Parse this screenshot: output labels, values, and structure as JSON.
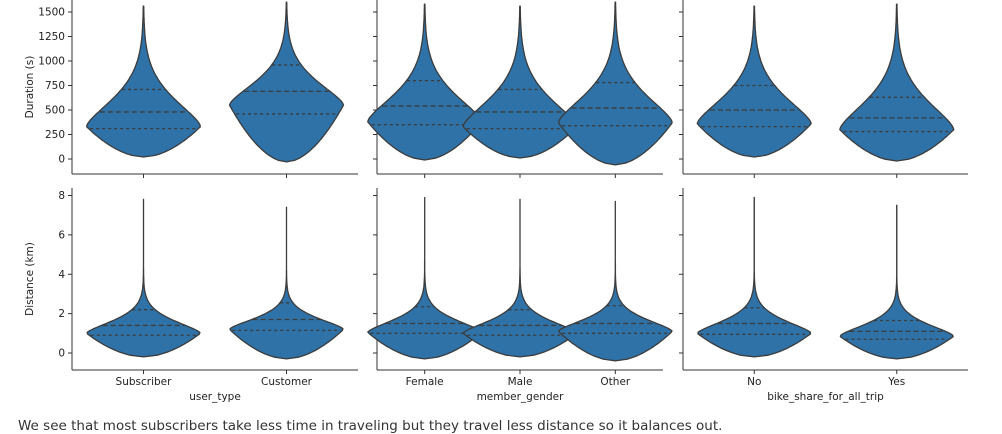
{
  "colors": {
    "violin_fill": "#2e72a8",
    "violin_edge": "#3c3c3c",
    "axis": "#333333",
    "text": "#222222"
  },
  "chart_data": {
    "type": "violin",
    "grid": false,
    "note": "We see that most subscribers take less time in traveling but they travel less distance so it balances out.",
    "rows": [
      {
        "ylabel": "Duration (s)",
        "yticks": [
          0,
          250,
          500,
          750,
          1000,
          1250,
          1500
        ],
        "ylim": [
          -100,
          1570
        ]
      },
      {
        "ylabel": "Distance (km)",
        "yticks": [
          0,
          2,
          4,
          6,
          8
        ],
        "ylim": [
          -0.8,
          8.2
        ]
      }
    ],
    "columns": [
      {
        "xlabel": "user_type",
        "categories": [
          "Subscriber",
          "Customer"
        ]
      },
      {
        "xlabel": "member_gender",
        "categories": [
          "Female",
          "Male",
          "Other"
        ]
      },
      {
        "xlabel": "bike_share_for_all_trip",
        "categories": [
          "No",
          "Yes"
        ]
      }
    ],
    "violins": [
      [
        [
          {
            "min": 20,
            "max": 1560,
            "q1": 310,
            "median": 480,
            "q3": 710,
            "mode": 330
          },
          {
            "min": -30,
            "max": 1600,
            "q1": 460,
            "median": 690,
            "q3": 960,
            "mode": 550
          }
        ],
        [
          {
            "min": -10,
            "max": 1580,
            "q1": 350,
            "median": 540,
            "q3": 800,
            "mode": 380
          },
          {
            "min": 10,
            "max": 1560,
            "q1": 310,
            "median": 480,
            "q3": 710,
            "mode": 330
          },
          {
            "min": -60,
            "max": 1600,
            "q1": 340,
            "median": 520,
            "q3": 780,
            "mode": 370
          }
        ],
        [
          {
            "min": 20,
            "max": 1560,
            "q1": 330,
            "median": 500,
            "q3": 750,
            "mode": 360
          },
          {
            "min": -20,
            "max": 1580,
            "q1": 280,
            "median": 420,
            "q3": 630,
            "mode": 300
          }
        ]
      ],
      [
        [
          {
            "min": -0.2,
            "max": 7.8,
            "q1": 0.9,
            "median": 1.4,
            "q3": 2.2,
            "mode": 1.0
          },
          {
            "min": -0.3,
            "max": 7.4,
            "q1": 1.15,
            "median": 1.7,
            "q3": 2.55,
            "mode": 1.2
          }
        ],
        [
          {
            "min": -0.3,
            "max": 7.9,
            "q1": 1.0,
            "median": 1.5,
            "q3": 2.35,
            "mode": 1.05
          },
          {
            "min": -0.2,
            "max": 7.8,
            "q1": 0.9,
            "median": 1.4,
            "q3": 2.2,
            "mode": 1.0
          },
          {
            "min": -0.4,
            "max": 7.7,
            "q1": 1.0,
            "median": 1.5,
            "q3": 2.4,
            "mode": 1.1
          }
        ],
        [
          {
            "min": -0.2,
            "max": 7.9,
            "q1": 0.95,
            "median": 1.5,
            "q3": 2.3,
            "mode": 1.0
          },
          {
            "min": -0.3,
            "max": 7.5,
            "q1": 0.7,
            "median": 1.1,
            "q3": 1.65,
            "mode": 0.85
          }
        ]
      ]
    ]
  }
}
